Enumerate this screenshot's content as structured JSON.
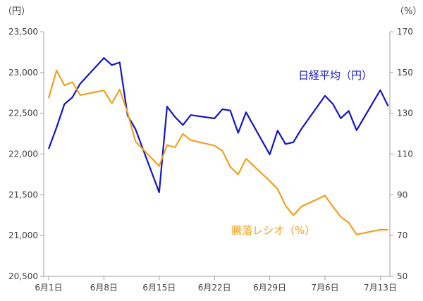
{
  "chart_data": {
    "type": "line",
    "left_unit_label": "（円）",
    "right_unit_label": "（%）",
    "left_axis": {
      "ylim": [
        20500,
        23500
      ],
      "ticks": [
        20500,
        21000,
        21500,
        22000,
        22500,
        23000,
        23500
      ],
      "tick_labels": [
        "20,500",
        "21,000",
        "21,500",
        "22,000",
        "22,500",
        "23,000",
        "23,500"
      ]
    },
    "right_axis": {
      "ylim": [
        50,
        170
      ],
      "ticks": [
        50,
        70,
        90,
        110,
        130,
        150,
        170
      ],
      "tick_labels": [
        "50",
        "70",
        "90",
        "110",
        "130",
        "150",
        "170"
      ]
    },
    "x_ticks": [
      {
        "day": 0,
        "label": "6月1日"
      },
      {
        "day": 7,
        "label": "6月8日"
      },
      {
        "day": 14,
        "label": "6月15日"
      },
      {
        "day": 21,
        "label": "6月22日"
      },
      {
        "day": 28,
        "label": "6月29日"
      },
      {
        "day": 35,
        "label": "7月6日"
      },
      {
        "day": 42,
        "label": "7月13日"
      }
    ],
    "x_days": [
      0,
      1,
      2,
      3,
      4,
      7,
      8,
      9,
      10,
      11,
      14,
      15,
      16,
      17,
      18,
      21,
      22,
      23,
      24,
      25,
      28,
      29,
      30,
      31,
      32,
      35,
      36,
      37,
      38,
      39,
      42,
      43
    ],
    "series": [
      {
        "name": "日経平均（円）",
        "axis": "left",
        "color": "#1414c8",
        "values": [
          22062,
          22325,
          22613,
          22695,
          22863,
          23178,
          23091,
          23124,
          22473,
          22305,
          21530,
          22582,
          22455,
          22355,
          22478,
          22437,
          22549,
          22534,
          22259,
          22512,
          21995,
          22288,
          22122,
          22145,
          22306,
          22714,
          22614,
          22438,
          22529,
          22291,
          22784,
          22587
        ]
      },
      {
        "name": "騰落レシオ（%）",
        "axis": "right",
        "color": "#f0a020",
        "values": [
          137.4,
          151.0,
          143.7,
          145.3,
          138.9,
          141.2,
          134.9,
          141.6,
          130.3,
          116.2,
          104.1,
          114.4,
          113.3,
          119.9,
          116.8,
          114.1,
          111.6,
          103.7,
          100.0,
          107.7,
          96.8,
          92.8,
          84.7,
          79.9,
          84.2,
          89.6,
          84.2,
          79.2,
          76.3,
          70.5,
          72.9,
          72.8
        ]
      }
    ]
  }
}
